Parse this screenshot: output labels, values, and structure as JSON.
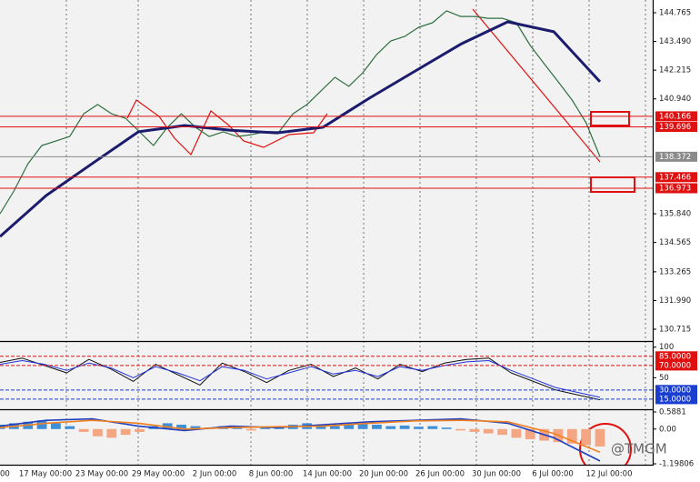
{
  "chart_data": [
    {
      "type": "line",
      "ylim": [
        130.19,
        145.33
      ],
      "yticks": [
        144.765,
        {
          "value": 143.49,
          "label": "143.490"
        },
        142.215,
        {
          "value": 140.94,
          "label": "140.940"
        },
        {
          "value": 135.84,
          "label": "135.840"
        },
        134.565,
        133.265,
        {
          "value": 131.99,
          "label": "131.990"
        },
        130.715,
        {
          "value": 140.166,
          "label": "140.166",
          "color": "#e01010"
        },
        {
          "value": 139.696,
          "label": "139.696",
          "color": "#e01010"
        },
        {
          "value": 138.372,
          "label": "138.372",
          "color": "#8a8a8a"
        },
        {
          "value": 137.466,
          "label": "137.466",
          "color": "#e01010"
        },
        {
          "value": 136.973,
          "label": "136.973",
          "color": "#e01010"
        }
      ],
      "series": [
        {
          "color": "#2f6f3f",
          "width": 1.2,
          "values": [
            135.84,
            136.85,
            138.06,
            138.87,
            139.07,
            139.27,
            140.28,
            140.69,
            140.28,
            140.08,
            139.48,
            138.87,
            139.68,
            140.28,
            139.68,
            139.27,
            139.48,
            139.27,
            139.35,
            139.48,
            139.48,
            140.28,
            140.69,
            141.29,
            141.9,
            141.5,
            142.1,
            142.91,
            143.51,
            143.71,
            144.12,
            144.32,
            144.85,
            144.6,
            144.6,
            144.52,
            144.52,
            144.32,
            143.31,
            142.5,
            141.7,
            140.89,
            139.88,
            138.37
          ]
        },
        {
          "color": "#1c1c6e",
          "width": 3,
          "values": [
            134.83,
            136.65,
            138.07,
            139.48,
            139.76,
            139.55,
            139.43,
            139.68,
            140.97,
            142.18,
            143.39,
            144.36,
            143.92,
            141.7
          ]
        }
      ],
      "time_labels": [
        "00",
        "17 May 00:00",
        "23 May 00:00",
        "29 May 00:00",
        "2 Jun 00:00",
        "8 Jun 00:00",
        "14 Jun 00:00",
        "20 Jun 00:00",
        "26 Jun 00:00",
        "30 Jun 00:00",
        "6 Jul 00:00",
        "12 Jul 00:00"
      ],
      "watermark": "@TMGM"
    },
    {
      "type": "line",
      "ylim": [
        0,
        107
      ],
      "yticks": [
        100,
        {
          "value": 85,
          "label": "85.0000",
          "color": "#e01010"
        },
        {
          "value": 70,
          "label": "70.0000",
          "color": "#e01010"
        },
        50,
        {
          "value": 30,
          "label": "30.0000",
          "color": "#1a3fd0"
        },
        {
          "value": 15,
          "label": "15.0000",
          "color": "#1a3fd0"
        }
      ],
      "series": [
        {
          "color": "#111111",
          "width": 1,
          "values": [
            75,
            82,
            70,
            58,
            80,
            64,
            44,
            72,
            55,
            38,
            74,
            60,
            42,
            62,
            72,
            52,
            66,
            48,
            72,
            60,
            74,
            80,
            82,
            58,
            44,
            30,
            22,
            14
          ]
        },
        {
          "color": "#2233dd",
          "width": 1,
          "values": [
            72,
            78,
            72,
            62,
            74,
            66,
            50,
            68,
            58,
            45,
            68,
            62,
            48,
            58,
            68,
            56,
            62,
            52,
            68,
            62,
            70,
            76,
            78,
            62,
            48,
            34,
            26,
            18
          ]
        }
      ]
    },
    {
      "type": "bar",
      "ylim": [
        -1.19806,
        0.5881
      ],
      "yticks": [
        0.5881,
        {
          "value": 0,
          "label": "0.00"
        },
        -1.19806
      ],
      "color_up": "#3f8fd8",
      "color_down": "#f4a582",
      "values": [
        0.15,
        0.2,
        0.25,
        0.3,
        0.2,
        0.1,
        -0.1,
        -0.25,
        -0.3,
        -0.2,
        -0.1,
        0.1,
        0.2,
        0.15,
        0.1,
        0.05,
        0.1,
        0.05,
        -0.05,
        0.05,
        0.1,
        0.15,
        0.2,
        0.15,
        0.1,
        0.15,
        0.2,
        0.15,
        0.1,
        0.12,
        0.08,
        0.1,
        0.05,
        -0.05,
        -0.1,
        -0.15,
        -0.2,
        -0.3,
        -0.35,
        -0.4,
        -0.45,
        -0.5,
        -0.55,
        -0.6
      ],
      "series": [
        {
          "color": "#1f3fbf",
          "width": 1.6,
          "values": [
            0.1,
            0.3,
            0.35,
            0.1,
            -0.05,
            0.1,
            0.05,
            0.15,
            0.25,
            0.3,
            0.35,
            0.2,
            -0.3,
            -1.1
          ]
        },
        {
          "color": "#f08020",
          "width": 1.6,
          "values": [
            0.05,
            0.2,
            0.3,
            0.2,
            0.0,
            0.05,
            0.08,
            0.1,
            0.2,
            0.28,
            0.3,
            0.25,
            -0.15,
            -0.8
          ]
        }
      ]
    }
  ]
}
